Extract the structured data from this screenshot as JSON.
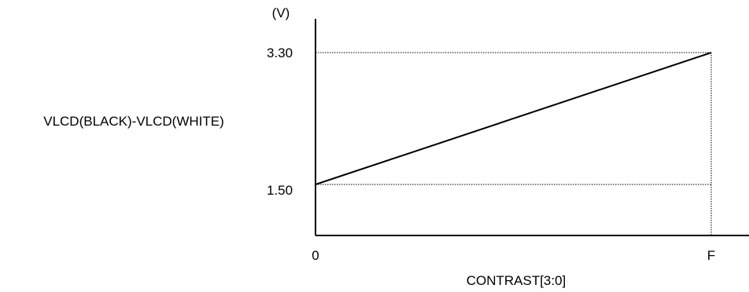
{
  "chart_data": {
    "type": "line",
    "ylabel": "VLCD(BLACK)-VLCD(WHITE)",
    "yunit": "(V)",
    "xlabel": "CONTRAST[3:0]",
    "x_tick_labels": [
      "0",
      "F"
    ],
    "y_tick_labels": [
      "1.50",
      "3.30"
    ],
    "series": [
      {
        "x": [
          "0",
          "F"
        ],
        "y": [
          1.5,
          3.3
        ]
      }
    ],
    "reference_lines": "dotted at y = 1.50, y = 3.30 and x = F",
    "colors": {
      "line": "#000000",
      "axis": "#000000",
      "reference": "#000000"
    }
  }
}
